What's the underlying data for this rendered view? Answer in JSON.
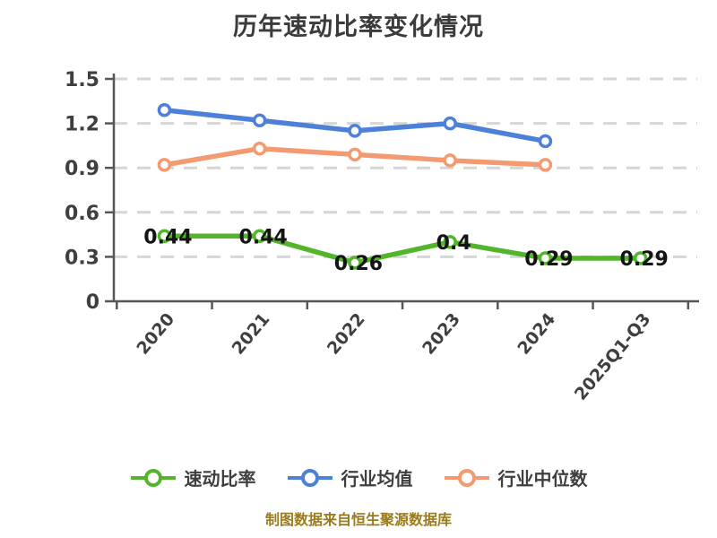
{
  "title": "历年速动比率变化情况",
  "footer": "制图数据来自恒生聚源数据库",
  "colors": {
    "quick_ratio_green": "#52b52c",
    "industry_avg_blue": "#4c80d9",
    "industry_median_orange": "#f49a71",
    "grid": "#d6d6d6",
    "axis": "#55565a",
    "tick_label": "#3f3f3f",
    "data_label": "#141414",
    "footer_text": "#9a7a1a",
    "marker_fill": "#ffffff",
    "background": "#ffffff"
  },
  "legend": [
    {
      "label": "速动比率",
      "color": "#52b52c",
      "icon": "line-circle-marker"
    },
    {
      "label": "行业均值",
      "color": "#4c80d9",
      "icon": "line-circle-marker"
    },
    {
      "label": "行业中位数",
      "color": "#f49a71",
      "icon": "line-circle-marker"
    }
  ],
  "chart_data": {
    "type": "line",
    "title": "历年速动比率变化情况",
    "xlabel": "",
    "ylabel": "",
    "categories": [
      "2020",
      "2021",
      "2022",
      "2023",
      "2024",
      "2025Q1-Q3"
    ],
    "series": [
      {
        "name": "速动比率",
        "color": "#52b52c",
        "values": [
          0.44,
          0.44,
          0.26,
          0.4,
          0.29,
          0.29
        ],
        "show_data_labels": true
      },
      {
        "name": "行业均值",
        "color": "#4c80d9",
        "values": [
          1.29,
          1.22,
          1.15,
          1.2,
          1.08
        ],
        "show_data_labels": false
      },
      {
        "name": "行业中位数",
        "color": "#f49a71",
        "values": [
          0.92,
          1.03,
          0.99,
          0.95,
          0.92
        ],
        "show_data_labels": false
      }
    ],
    "ylim": [
      0,
      1.5
    ],
    "yticks": [
      "0",
      "0.3",
      "0.6",
      "0.9",
      "1.2",
      "1.5"
    ],
    "grid": "horizontal-dashed",
    "legend_position": "bottom",
    "x_tick_label_rotation_deg": -50
  }
}
